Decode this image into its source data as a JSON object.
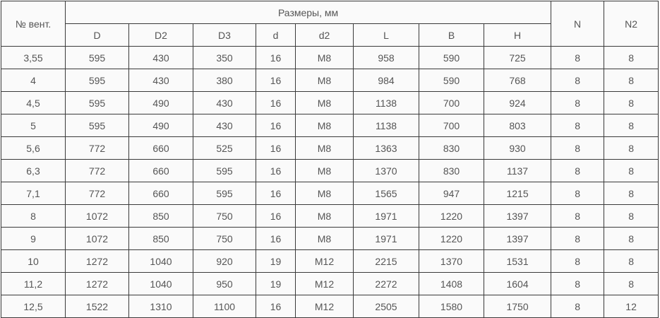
{
  "table": {
    "header": {
      "fan_no": "№ вент.",
      "group": "Размеры, мм",
      "sub_columns": [
        "D",
        "D2",
        "D3",
        "d",
        "d2",
        "L",
        "B",
        "H"
      ],
      "n": "N",
      "n2": "N2"
    },
    "rows": [
      [
        "3,55",
        "595",
        "430",
        "350",
        "16",
        "M8",
        "958",
        "590",
        "725",
        "8",
        "8"
      ],
      [
        "4",
        "595",
        "430",
        "380",
        "16",
        "M8",
        "984",
        "590",
        "768",
        "8",
        "8"
      ],
      [
        "4,5",
        "595",
        "490",
        "430",
        "16",
        "M8",
        "1138",
        "700",
        "924",
        "8",
        "8"
      ],
      [
        "5",
        "595",
        "490",
        "430",
        "16",
        "M8",
        "1138",
        "700",
        "803",
        "8",
        "8"
      ],
      [
        "5,6",
        "772",
        "660",
        "525",
        "16",
        "M8",
        "1363",
        "830",
        "930",
        "8",
        "8"
      ],
      [
        "6,3",
        "772",
        "660",
        "595",
        "16",
        "M8",
        "1370",
        "830",
        "1137",
        "8",
        "8"
      ],
      [
        "7,1",
        "772",
        "660",
        "595",
        "16",
        "M8",
        "1565",
        "947",
        "1215",
        "8",
        "8"
      ],
      [
        "8",
        "1072",
        "850",
        "750",
        "16",
        "M8",
        "1971",
        "1220",
        "1397",
        "8",
        "8"
      ],
      [
        "9",
        "1072",
        "850",
        "750",
        "16",
        "M8",
        "1971",
        "1220",
        "1397",
        "8",
        "8"
      ],
      [
        "10",
        "1272",
        "1040",
        "920",
        "19",
        "M12",
        "2215",
        "1370",
        "1531",
        "8",
        "8"
      ],
      [
        "11,2",
        "1272",
        "1040",
        "950",
        "19",
        "M12",
        "2272",
        "1408",
        "1604",
        "8",
        "8"
      ],
      [
        "12,5",
        "1522",
        "1310",
        "1100",
        "16",
        "M12",
        "2505",
        "1580",
        "1750",
        "8",
        "12"
      ]
    ]
  }
}
